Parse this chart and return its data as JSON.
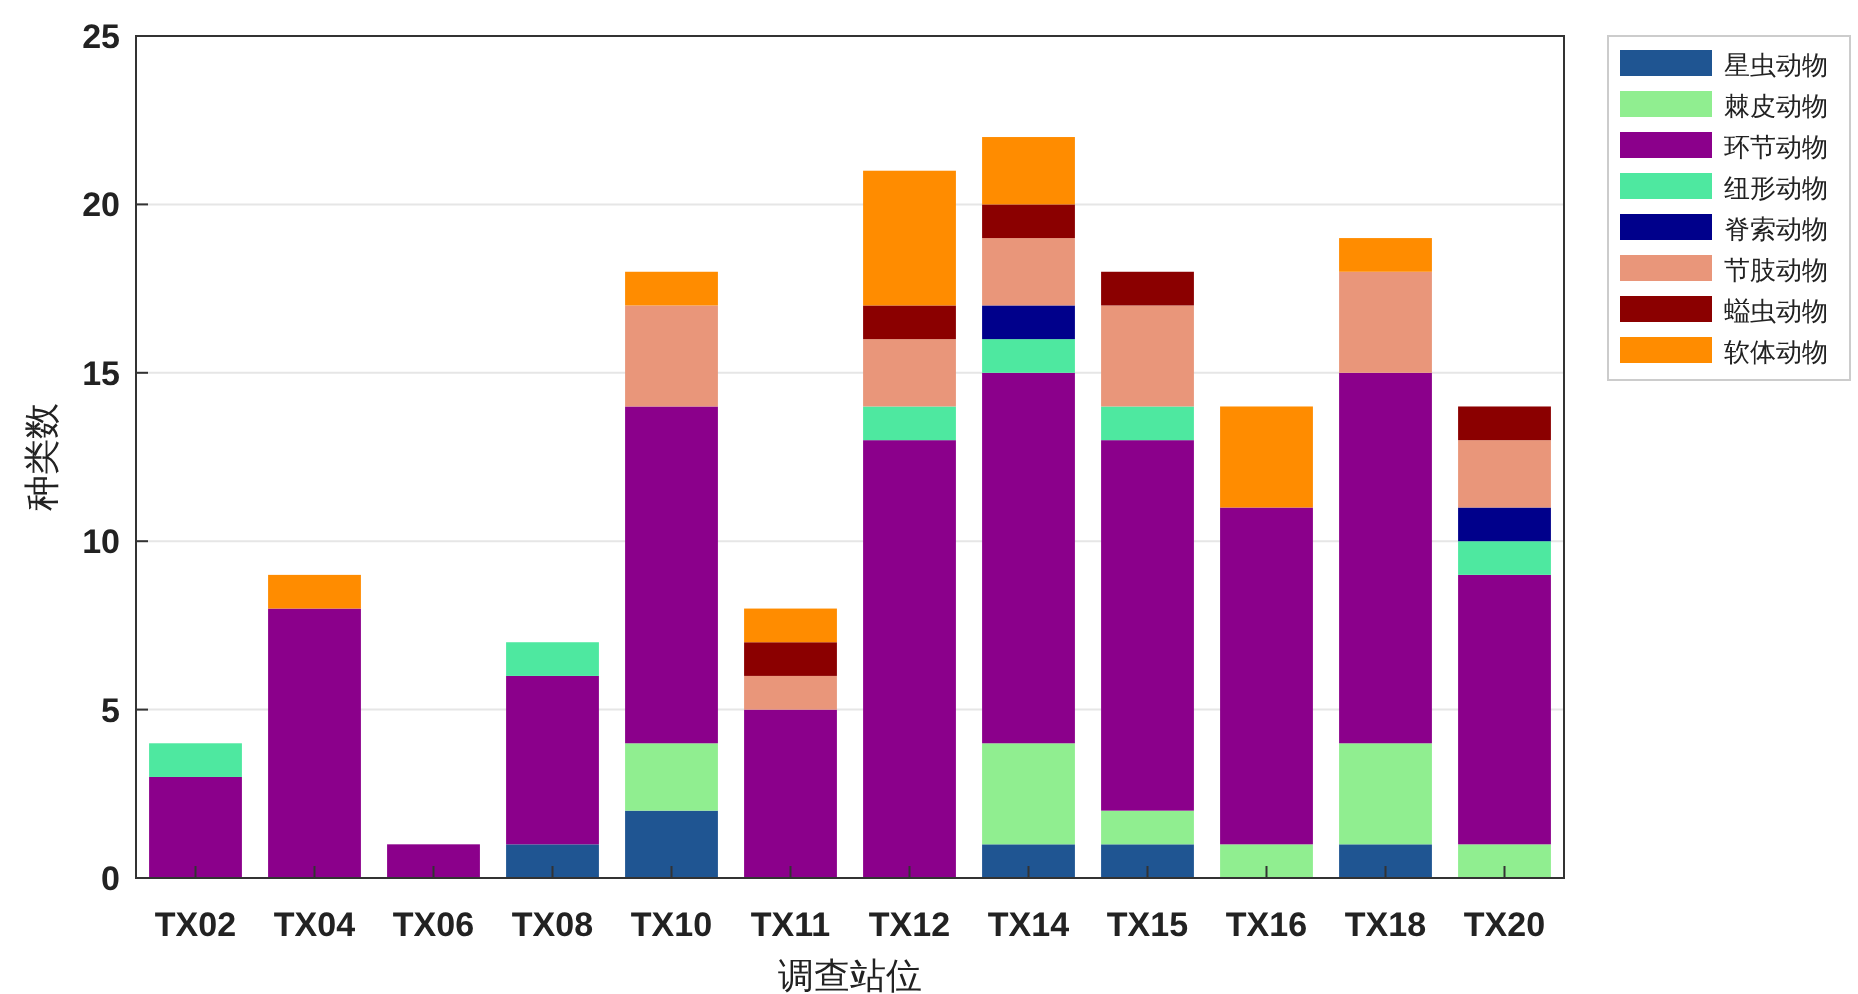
{
  "chart_data": {
    "type": "bar",
    "stacked": true,
    "xlabel": "调查站位",
    "ylabel": "种类数",
    "categories": [
      "TX02",
      "TX04",
      "TX06",
      "TX08",
      "TX10",
      "TX11",
      "TX12",
      "TX14",
      "TX15",
      "TX16",
      "TX18",
      "TX20"
    ],
    "series": [
      {
        "name": "星虫动物",
        "color": "#1f5592",
        "values": [
          0,
          0,
          0,
          1,
          2,
          0,
          0,
          1,
          1,
          0,
          1,
          0
        ]
      },
      {
        "name": "棘皮动物",
        "color": "#90ee90",
        "values": [
          0,
          0,
          0,
          0,
          2,
          0,
          0,
          3,
          1,
          1,
          3,
          1
        ]
      },
      {
        "name": "环节动物",
        "color": "#8b008b",
        "values": [
          3,
          8,
          1,
          5,
          10,
          5,
          13,
          11,
          11,
          10,
          11,
          8
        ]
      },
      {
        "name": "纽形动物",
        "color": "#4ee8a0",
        "values": [
          1,
          0,
          0,
          1,
          0,
          0,
          1,
          1,
          1,
          0,
          0,
          1
        ]
      },
      {
        "name": "脊索动物",
        "color": "#00008b",
        "values": [
          0,
          0,
          0,
          0,
          0,
          0,
          0,
          1,
          0,
          0,
          0,
          1
        ]
      },
      {
        "name": "节肢动物",
        "color": "#e9967a",
        "values": [
          0,
          0,
          0,
          0,
          3,
          1,
          2,
          2,
          3,
          0,
          3,
          2
        ]
      },
      {
        "name": "螠虫动物",
        "color": "#8b0000",
        "values": [
          0,
          0,
          0,
          0,
          0,
          1,
          1,
          1,
          1,
          0,
          0,
          1
        ]
      },
      {
        "name": "软体动物",
        "color": "#ff8c00",
        "values": [
          0,
          1,
          0,
          0,
          1,
          1,
          4,
          2,
          0,
          3,
          1,
          0
        ]
      }
    ],
    "ylim": [
      0,
      25
    ],
    "yticks": [
      0,
      5,
      10,
      15,
      20,
      25
    ],
    "grid": "y",
    "legend": "top right"
  }
}
